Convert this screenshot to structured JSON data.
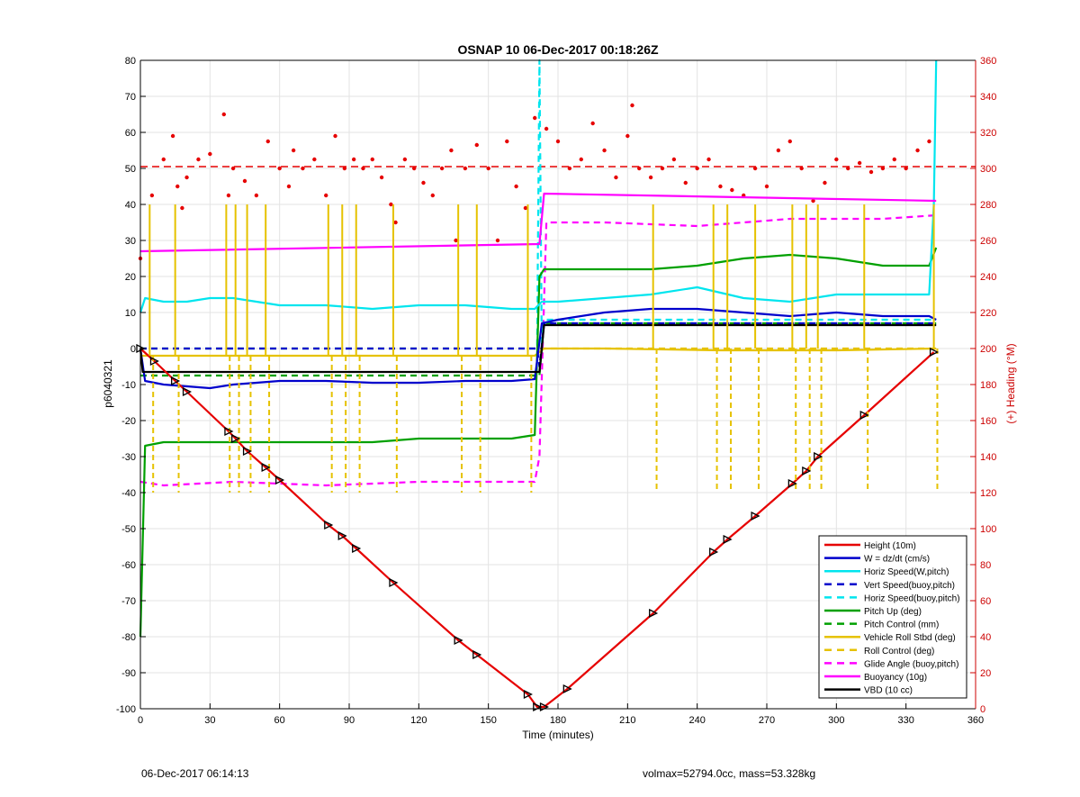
{
  "footer": {
    "date_text": "06-Dec-2017 06:14:13",
    "volmax_text": "volmax=52794.0cc, mass=53.328kg"
  },
  "chart_data": {
    "type": "line",
    "title": "OSNAP 10 06-Dec-2017 00:18:26Z",
    "xlabel": "Time (minutes)",
    "ylabel_left": "p6040321",
    "ylabel_right": "(+) Heading (°M)",
    "xlim": [
      0,
      360
    ],
    "ylim_left": [
      -100,
      80
    ],
    "ylim_right": [
      0,
      360
    ],
    "x_ticks": [
      "0",
      "30",
      "60",
      "90",
      "120",
      "150",
      "180",
      "210",
      "240",
      "270",
      "300",
      "330",
      "360"
    ],
    "y_ticks_left": [
      "80",
      "70",
      "60",
      "50",
      "40",
      "30",
      "20",
      "10",
      "0",
      "-10",
      "-20",
      "-30",
      "-40",
      "-50",
      "-60",
      "-70",
      "-80",
      "-90",
      "-100"
    ],
    "y_ticks_right": [
      "360",
      "340",
      "320",
      "300",
      "280",
      "260",
      "240",
      "220",
      "200",
      "180",
      "160",
      "140",
      "120",
      "100",
      "80",
      "60",
      "40",
      "20",
      "0"
    ],
    "grid": true,
    "legend_position": "bottom-right",
    "series": [
      {
        "name": "Height (10m)",
        "color": "#e60000",
        "style": "solid",
        "x": [
          0,
          6,
          15,
          20,
          38,
          41,
          46,
          54,
          60,
          81,
          87,
          93,
          109,
          137,
          145,
          167,
          171,
          174,
          184,
          221,
          247,
          253,
          265,
          281,
          287,
          292,
          312,
          342
        ],
        "y": [
          0,
          -3.5,
          -9,
          -12,
          -23,
          -25,
          -28.5,
          -33,
          -36.5,
          -49,
          -52,
          -55.5,
          -65,
          -81,
          -85,
          -96,
          -99.5,
          -99.5,
          -94.5,
          -73.5,
          -56.5,
          -53,
          -46.5,
          -37.5,
          -34,
          -30,
          -18.5,
          -1
        ]
      },
      {
        "name": "W = dz/dt (cm/s)",
        "color": "#0000cc",
        "style": "solid",
        "x": [
          0,
          2,
          10,
          20,
          30,
          40,
          60,
          80,
          100,
          120,
          140,
          160,
          170,
          173,
          180,
          200,
          220,
          240,
          260,
          280,
          300,
          320,
          340,
          343
        ],
        "y": [
          0,
          -9,
          -10,
          -10.5,
          -11,
          -10,
          -9,
          -9,
          -9.5,
          -9.5,
          -9,
          -9,
          -8.5,
          7,
          8,
          10,
          11,
          11,
          10,
          9,
          10,
          9,
          9,
          8
        ]
      },
      {
        "name": "Horiz Speed(W,pitch)",
        "color": "#00e5ee",
        "style": "solid",
        "x": [
          0,
          2,
          10,
          20,
          30,
          40,
          60,
          80,
          100,
          120,
          140,
          160,
          170,
          173,
          180,
          200,
          220,
          240,
          260,
          280,
          300,
          320,
          340,
          342,
          343
        ],
        "y": [
          10,
          14,
          13,
          13,
          14,
          14,
          12,
          12,
          11,
          12,
          12,
          11,
          11,
          13,
          13,
          14,
          15,
          17,
          14,
          13,
          15,
          15,
          15,
          40,
          80
        ]
      },
      {
        "name": "Vert Speed(buoy,pitch)",
        "color": "#0000cc",
        "style": "dashed",
        "x": [
          0,
          171,
          172,
          174,
          343
        ],
        "y": [
          0,
          0,
          -5,
          7,
          7
        ]
      },
      {
        "name": "Horiz Speed(buoy,pitch)",
        "color": "#00e5ee",
        "style": "dashed",
        "x": [
          0,
          171,
          172,
          173,
          174,
          343
        ],
        "y": [
          0,
          0,
          80,
          0,
          8,
          8
        ]
      },
      {
        "name": "Pitch Up (deg)",
        "color": "#00a000",
        "style": "solid",
        "x": [
          0,
          2,
          10,
          20,
          40,
          60,
          80,
          100,
          120,
          140,
          160,
          170,
          172,
          174,
          180,
          200,
          220,
          240,
          260,
          280,
          300,
          320,
          340,
          343
        ],
        "y": [
          -80,
          -27,
          -26,
          -26,
          -26,
          -26,
          -26,
          -26,
          -25,
          -25,
          -25,
          -24,
          20,
          22,
          22,
          22,
          22,
          23,
          25,
          26,
          25,
          23,
          23,
          28
        ]
      },
      {
        "name": "Pitch Control (mm)",
        "color": "#00a000",
        "style": "dashed",
        "x": [
          0,
          172,
          174,
          343
        ],
        "y": [
          -7.5,
          -7.5,
          7,
          7
        ]
      },
      {
        "name": "Vehicle Roll Stbd (deg)",
        "color": "#e6c200",
        "style": "solid",
        "x": [
          0,
          10,
          50,
          100,
          150,
          170,
          174,
          200,
          250,
          300,
          343
        ],
        "y": [
          -2,
          -2,
          -2,
          -2,
          -2,
          -2,
          0,
          0,
          -0.5,
          -0.5,
          0
        ]
      },
      {
        "name": "Roll Control (deg)",
        "color": "#e6c200",
        "style": "dashed",
        "x": [
          0,
          171,
          174,
          343
        ],
        "y": [
          0,
          0,
          0,
          0
        ]
      },
      {
        "name": "Glide Angle (buoy,pitch)",
        "color": "#ff00ff",
        "style": "dashed",
        "x": [
          0,
          10,
          40,
          80,
          120,
          160,
          170,
          172,
          175,
          200,
          240,
          280,
          320,
          343
        ],
        "y": [
          -37,
          -38,
          -37,
          -38,
          -37,
          -37,
          -37,
          -30,
          35,
          35,
          34,
          36,
          36,
          37
        ]
      },
      {
        "name": "Buoyancy (10g)",
        "color": "#ff00ff",
        "style": "solid",
        "x": [
          0,
          172,
          174,
          343
        ],
        "y": [
          27,
          29,
          43,
          41
        ]
      },
      {
        "name": "VBD (10 cc)",
        "color": "#000000",
        "style": "solid",
        "x": [
          0,
          1,
          172,
          174,
          343
        ],
        "y": [
          0,
          -6.5,
          -6.5,
          6.5,
          6.5
        ]
      }
    ],
    "roll_spikes": {
      "descent_x": [
        4,
        15,
        37,
        41,
        46,
        54,
        81,
        87,
        93,
        109,
        137,
        145,
        167
      ],
      "ascent_x": [
        221,
        247,
        253,
        265,
        281,
        287,
        292,
        312,
        342
      ]
    },
    "heading_series": {
      "name": "Heading",
      "axis": "right",
      "color": "#e60000",
      "marker": "dot",
      "mean": 301,
      "x": [
        0,
        5,
        10,
        14,
        16,
        18,
        20,
        25,
        30,
        36,
        38,
        40,
        45,
        50,
        55,
        60,
        64,
        66,
        70,
        75,
        80,
        84,
        88,
        92,
        96,
        100,
        104,
        108,
        110,
        114,
        118,
        122,
        126,
        130,
        134,
        136,
        140,
        145,
        150,
        154,
        158,
        162,
        166,
        170,
        175,
        180,
        185,
        190,
        195,
        200,
        205,
        210,
        212,
        215,
        220,
        225,
        230,
        235,
        240,
        245,
        250,
        255,
        260,
        265,
        270,
        275,
        280,
        285,
        290,
        295,
        300,
        305,
        310,
        315,
        320,
        325,
        330,
        335,
        340
      ],
      "y": [
        250,
        285,
        305,
        318,
        290,
        278,
        295,
        305,
        308,
        330,
        285,
        300,
        293,
        285,
        315,
        300,
        290,
        310,
        300,
        305,
        285,
        318,
        300,
        305,
        300,
        305,
        295,
        280,
        270,
        305,
        300,
        292,
        285,
        300,
        310,
        260,
        300,
        313,
        300,
        260,
        315,
        290,
        278,
        328,
        322,
        315,
        300,
        305,
        325,
        310,
        295,
        318,
        335,
        300,
        295,
        300,
        305,
        292,
        300,
        305,
        290,
        288,
        285,
        300,
        290,
        310,
        315,
        300,
        282,
        292,
        305,
        300,
        303,
        298,
        300,
        305,
        300,
        310,
        315
      ]
    },
    "marker_points": {
      "x": [
        0,
        6,
        15,
        20,
        38,
        41,
        46,
        54,
        60,
        81,
        87,
        93,
        109,
        137,
        145,
        167,
        171,
        174,
        184,
        221,
        247,
        253,
        265,
        281,
        287,
        292,
        312,
        342
      ],
      "y": [
        0,
        -3.5,
        -9,
        -12,
        -23,
        -25,
        -28.5,
        -33,
        -36.5,
        -49,
        -52,
        -55.5,
        -65,
        -81,
        -85,
        -96,
        -99.5,
        -99.5,
        -94.5,
        -73.5,
        -56.5,
        -53,
        -46.5,
        -37.5,
        -34,
        -30,
        -18.5,
        -1
      ]
    }
  }
}
